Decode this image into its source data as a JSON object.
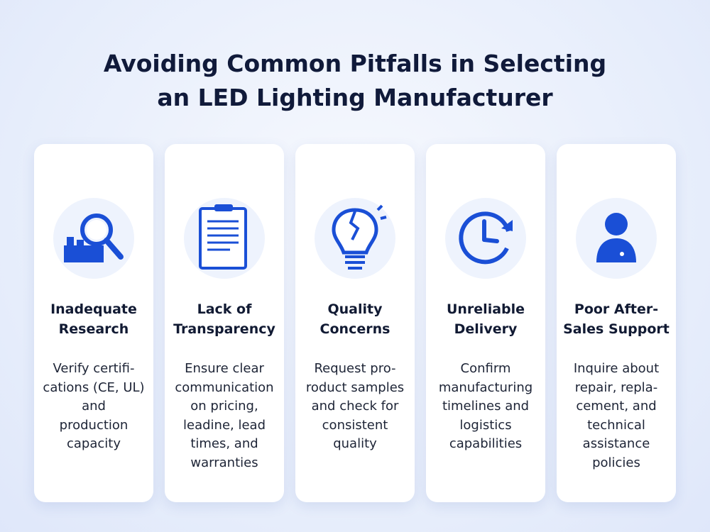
{
  "header": {
    "title_lines": [
      "Avoiding Common Pitfalls in Selecting",
      "an LED Lighting Manufacturer"
    ]
  },
  "cards": [
    {
      "title_lines": [
        "Inadequate",
        "Research"
      ],
      "description_lines": [
        "Verify certifi-",
        "cations (CE, UL)",
        "and",
        "production",
        "capacity"
      ]
    },
    {
      "title_lines": [
        "Lack of",
        "Transparency"
      ],
      "description_lines": [
        "Ensure clear",
        "communication",
        "on pricing,",
        "leadine, lead",
        "times, and",
        "warranties"
      ]
    },
    {
      "title_lines": [
        "Quality",
        "Concerns"
      ],
      "description_lines": [
        "Request pro-",
        "roduct samples",
        "and check for",
        "consistent",
        "quality"
      ]
    },
    {
      "title_lines": [
        "Unreliable",
        "Delivery"
      ],
      "description_lines": [
        "Confirm",
        "manufacturing",
        "timelines and",
        "logistics",
        "capabilities"
      ]
    },
    {
      "title_lines": [
        "Poor After-",
        "Sales Support"
      ],
      "description_lines": [
        "Inquire about",
        "repair, repla-",
        "cement, and",
        "technical",
        "assistance",
        "policies"
      ]
    }
  ]
}
